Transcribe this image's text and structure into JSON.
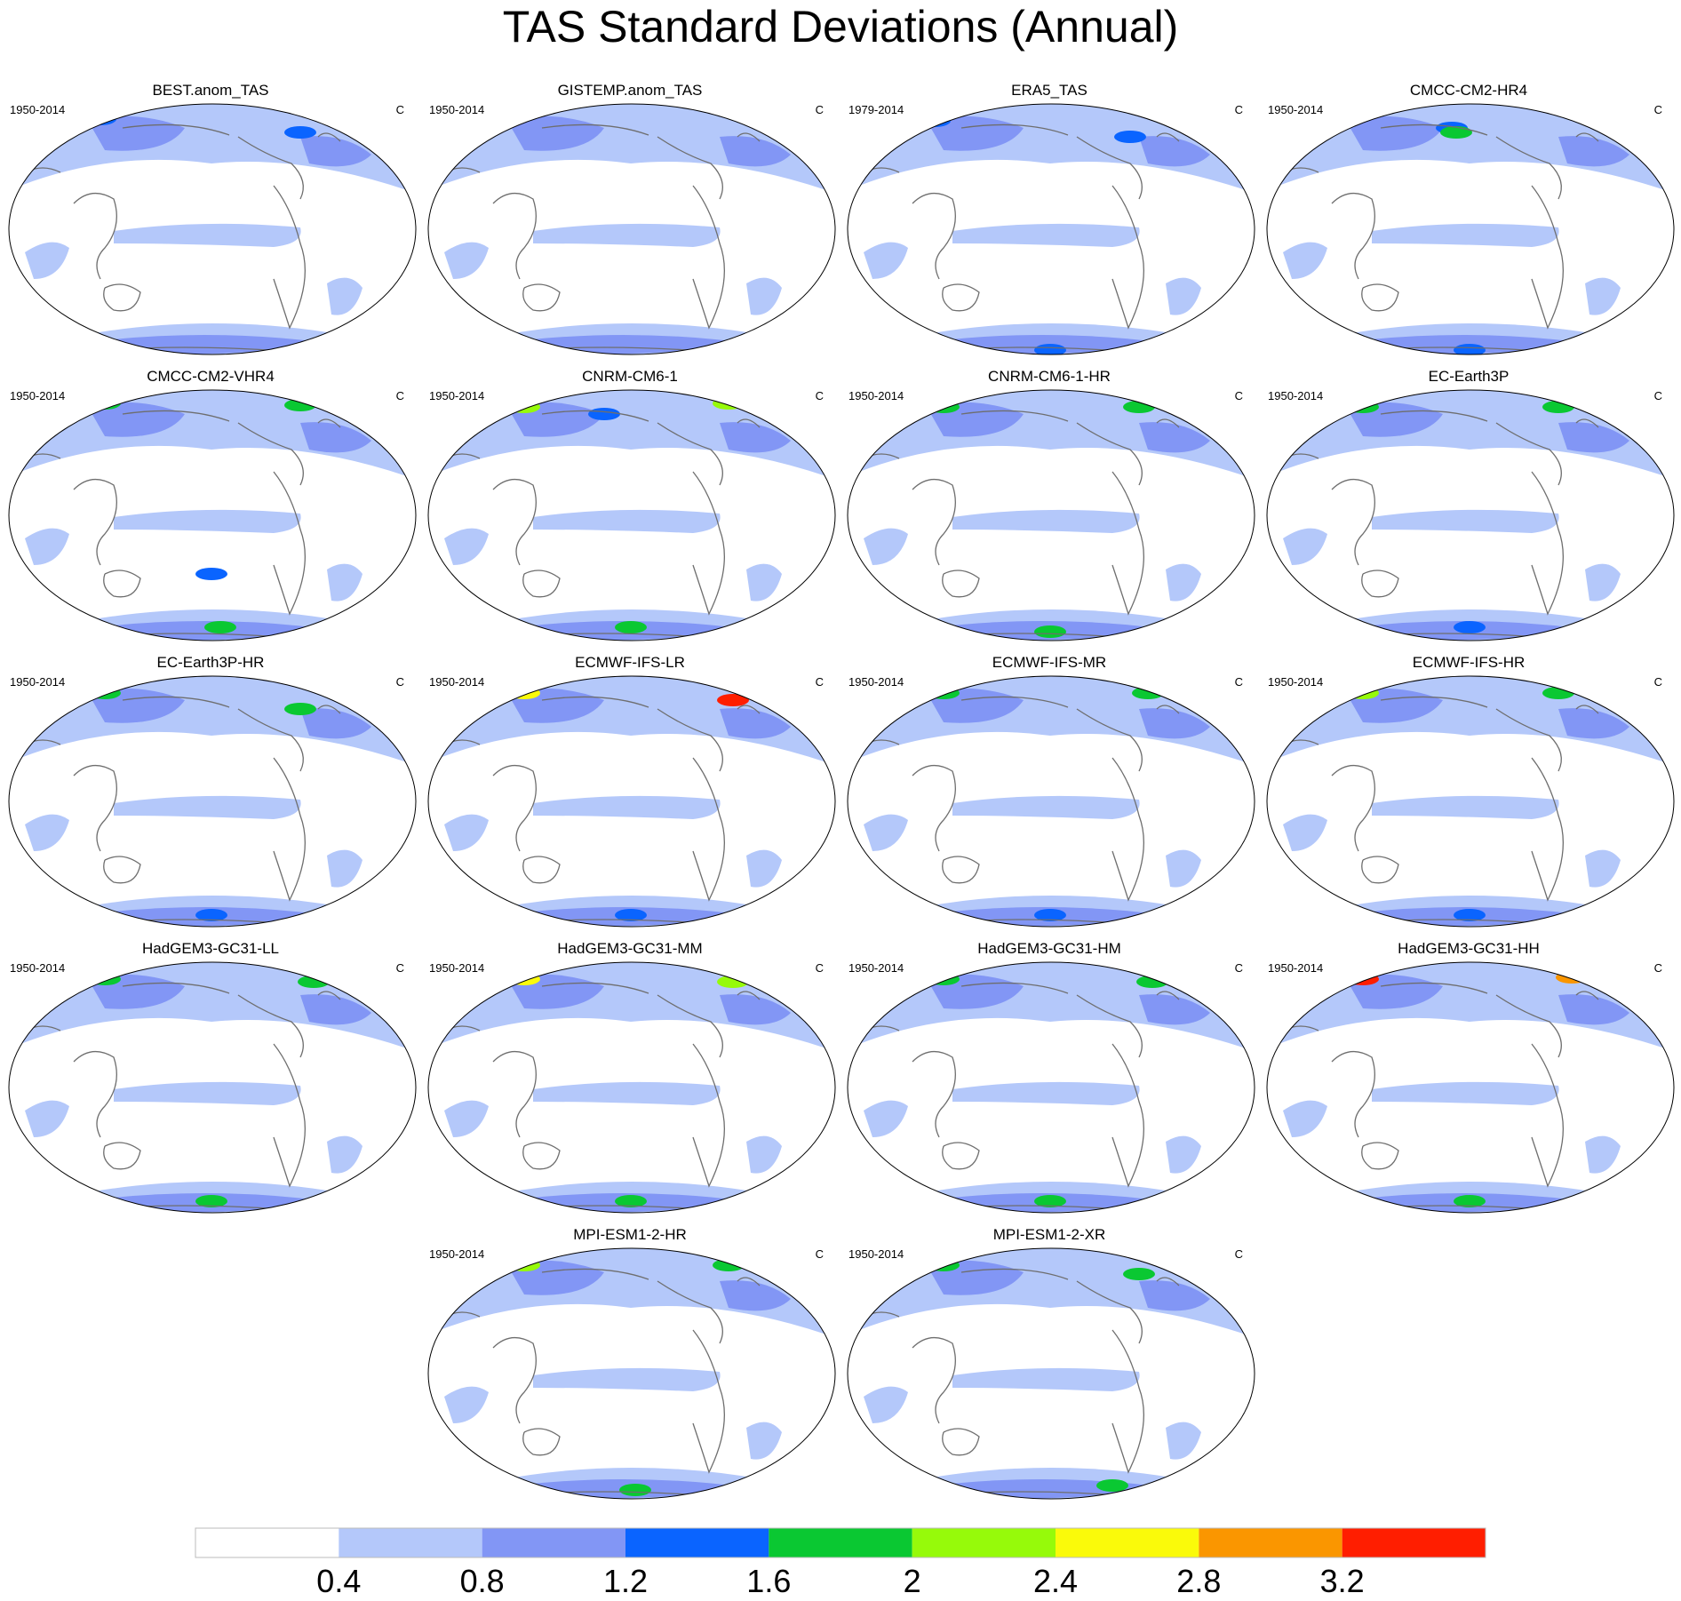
{
  "title": "TAS Standard Deviations (Annual)",
  "panels": [
    {
      "name": "BEST.anom_TAS",
      "period": "1950-2014",
      "unit": "C"
    },
    {
      "name": "GISTEMP.anom_TAS",
      "period": "1950-2014",
      "unit": "C"
    },
    {
      "name": "ERA5_TAS",
      "period": "1979-2014",
      "unit": "C"
    },
    {
      "name": "CMCC-CM2-HR4",
      "period": "1950-2014",
      "unit": "C"
    },
    {
      "name": "CMCC-CM2-VHR4",
      "period": "1950-2014",
      "unit": "C"
    },
    {
      "name": "CNRM-CM6-1",
      "period": "1950-2014",
      "unit": "C"
    },
    {
      "name": "CNRM-CM6-1-HR",
      "period": "1950-2014",
      "unit": "C"
    },
    {
      "name": "EC-Earth3P",
      "period": "1950-2014",
      "unit": "C"
    },
    {
      "name": "EC-Earth3P-HR",
      "period": "1950-2014",
      "unit": "C"
    },
    {
      "name": "ECMWF-IFS-LR",
      "period": "1950-2014",
      "unit": "C"
    },
    {
      "name": "ECMWF-IFS-MR",
      "period": "1950-2014",
      "unit": "C"
    },
    {
      "name": "ECMWF-IFS-HR",
      "period": "1950-2014",
      "unit": "C"
    },
    {
      "name": "HadGEM3-GC31-LL",
      "period": "1950-2014",
      "unit": "C"
    },
    {
      "name": "HadGEM3-GC31-MM",
      "period": "1950-2014",
      "unit": "C"
    },
    {
      "name": "HadGEM3-GC31-HM",
      "period": "1950-2014",
      "unit": "C"
    },
    {
      "name": "HadGEM3-GC31-HH",
      "period": "1950-2014",
      "unit": "C"
    },
    {
      "name": "MPI-ESM1-2-HR",
      "period": "1950-2014",
      "unit": "C"
    },
    {
      "name": "MPI-ESM1-2-XR",
      "period": "1950-2014",
      "unit": "C"
    }
  ],
  "colorbar": {
    "levels": [
      "0.4",
      "0.8",
      "1.2",
      "1.6",
      "2",
      "2.4",
      "2.8",
      "3.2"
    ],
    "colors": [
      "#ffffff",
      "#b4c8fa",
      "#8296f5",
      "#0a64ff",
      "#0ac832",
      "#96fa0a",
      "#fafa0a",
      "#fa9600",
      "#ff1e00"
    ]
  },
  "colors": {
    "coastline": "#6e6e6e",
    "map_outline": "#000000"
  }
}
